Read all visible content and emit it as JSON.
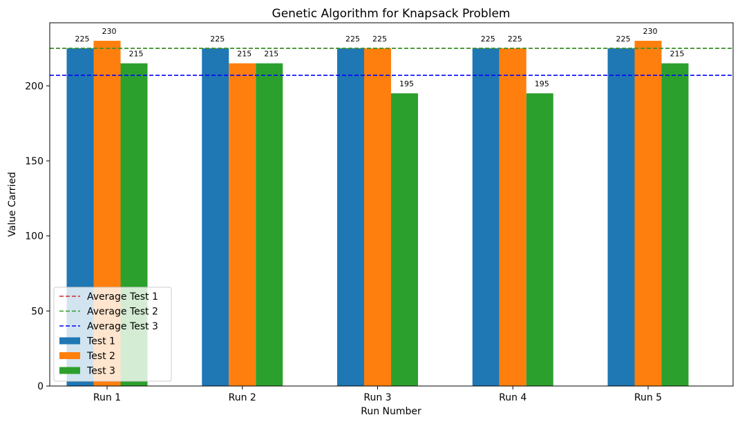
{
  "chart_data": {
    "type": "bar",
    "title": "Genetic Algorithm for Knapsack Problem",
    "xlabel": "Run Number",
    "ylabel": "Value Carried",
    "categories": [
      "Run 1",
      "Run 2",
      "Run 3",
      "Run 4",
      "Run 5"
    ],
    "series": [
      {
        "name": "Test 1",
        "color": "#1f77b4",
        "values": [
          225,
          225,
          225,
          225,
          225
        ],
        "labels": [
          "225",
          "225",
          "225",
          "225",
          "225"
        ]
      },
      {
        "name": "Test 2",
        "color": "#ff7f0e",
        "values": [
          230,
          215,
          225,
          225,
          230
        ],
        "labels": [
          "230",
          "215",
          "225",
          "225",
          "230"
        ]
      },
      {
        "name": "Test 3",
        "color": "#2ca02c",
        "values": [
          215,
          215,
          195,
          195,
          215
        ],
        "labels": [
          "215",
          "215",
          "195",
          "195",
          "215"
        ]
      }
    ],
    "average_lines": [
      {
        "name": "Average Test 1",
        "color": "#d62728",
        "value": 225
      },
      {
        "name": "Average Test 2",
        "color": "#2ca02c",
        "value": 225
      },
      {
        "name": "Average Test 3",
        "color": "#0000ff",
        "value": 207
      }
    ],
    "ylim": [
      0,
      242
    ],
    "yticks": [
      0,
      50,
      100,
      150,
      200
    ],
    "ytick_labels": [
      "0",
      "50",
      "100",
      "150",
      "200"
    ],
    "grid": false,
    "legend": "lower-left"
  }
}
